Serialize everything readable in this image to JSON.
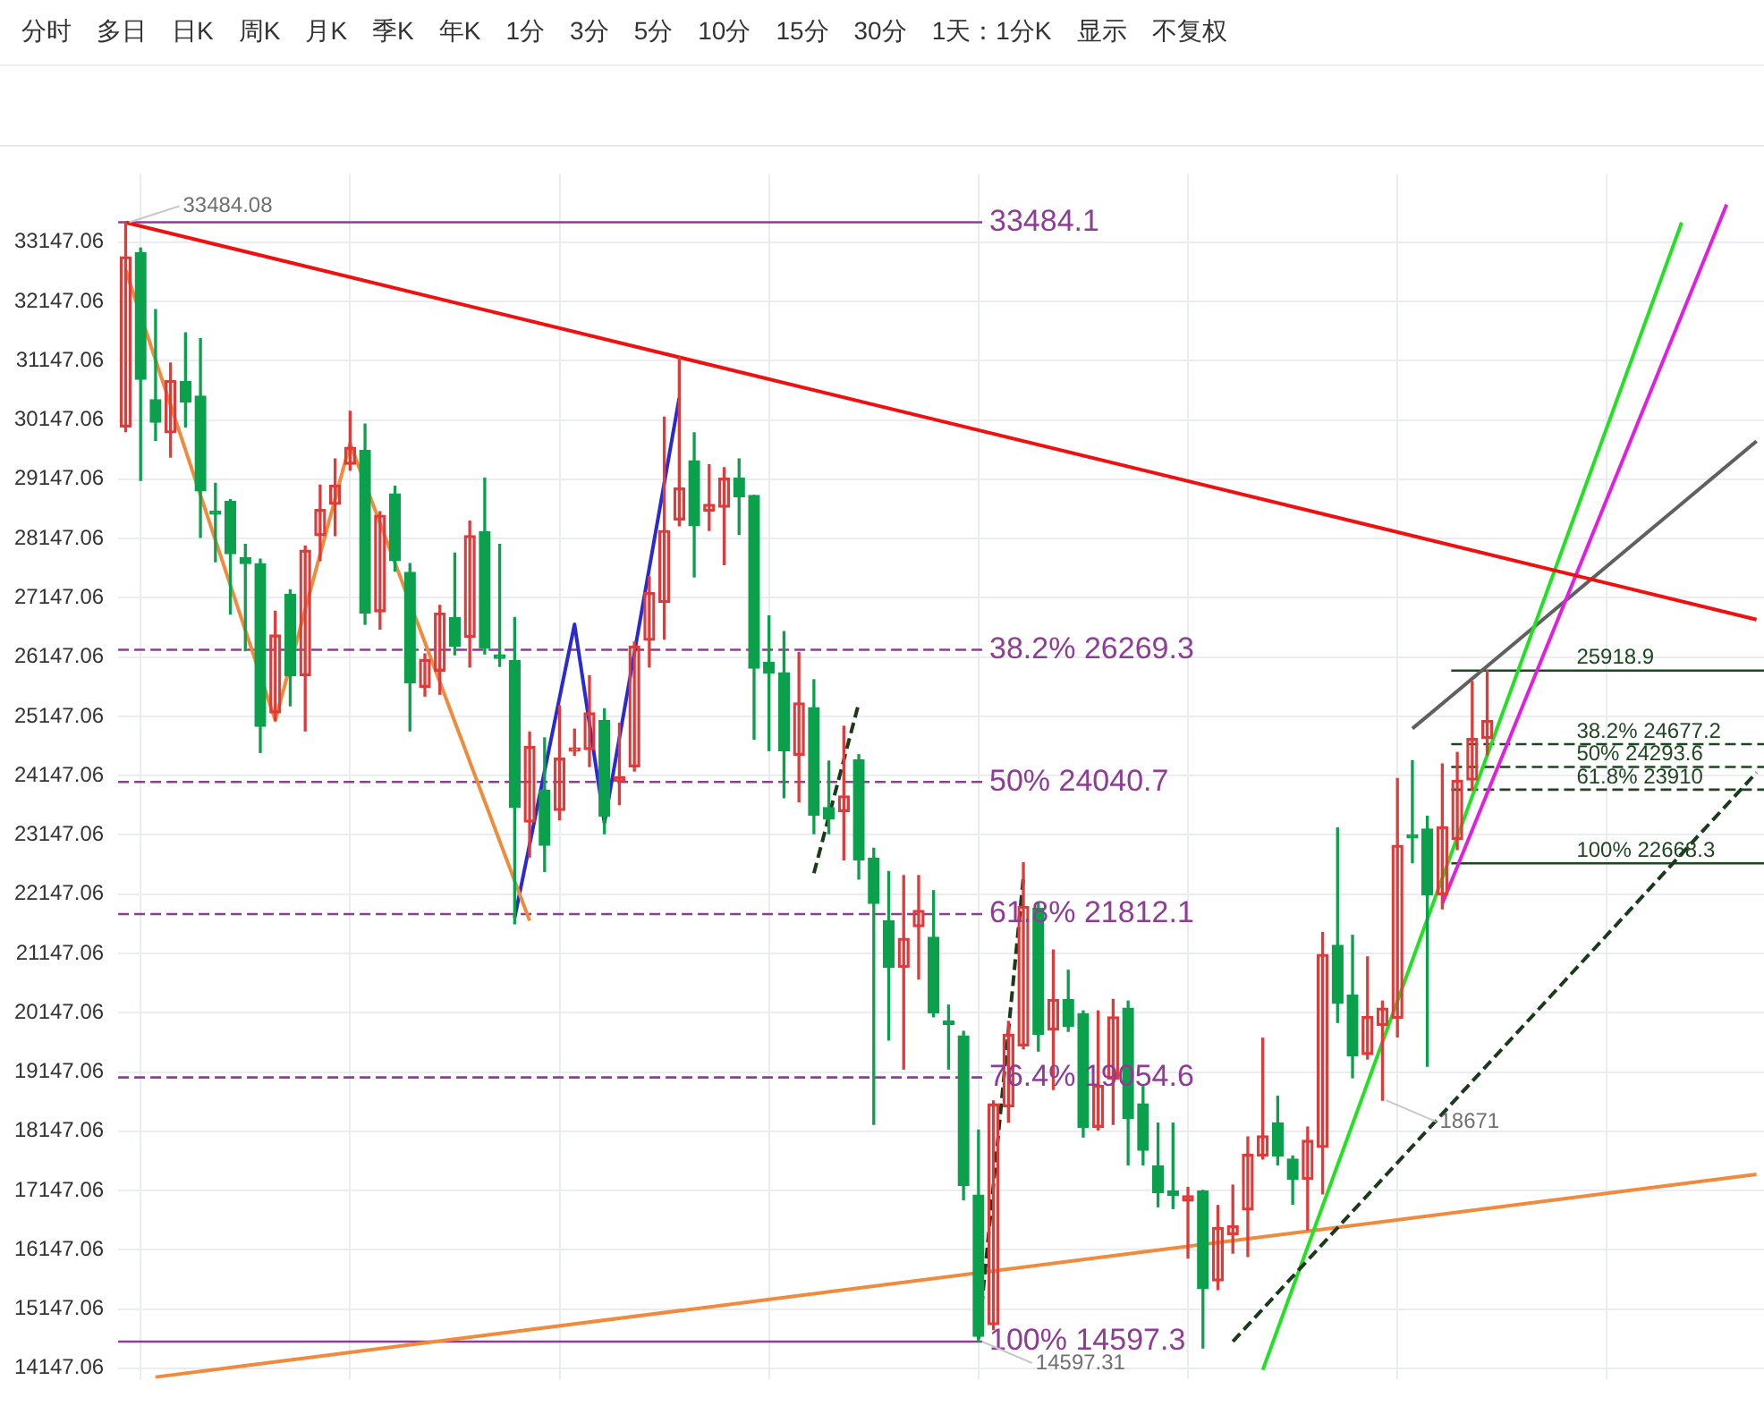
{
  "chart_data": {
    "type": "candlestick",
    "categories": [
      null,
      null,
      null,
      null,
      null,
      null,
      null,
      null,
      null,
      null,
      null,
      null,
      null,
      null,
      null,
      null,
      null,
      null,
      null,
      null,
      null,
      null,
      null,
      null,
      null,
      null,
      null,
      null,
      null,
      null,
      null,
      null,
      null,
      null,
      null,
      null,
      null,
      null,
      null,
      null,
      null,
      null,
      null,
      null,
      null,
      null,
      null,
      null,
      null,
      null,
      null,
      null,
      null,
      null,
      null,
      null,
      null,
      null,
      null,
      null,
      null,
      null,
      null,
      null,
      null,
      null,
      null,
      null,
      null,
      null,
      null,
      null,
      null,
      null,
      null,
      null,
      null,
      null,
      null,
      null,
      null,
      null,
      null,
      null,
      null,
      null,
      null,
      null,
      null,
      null,
      null,
      null,
      null,
      null,
      null,
      null,
      null,
      null,
      null,
      null,
      null,
      null,
      null,
      null,
      null,
      null,
      null,
      null,
      null,
      null
    ],
    "ohlc": [
      [
        30031,
        33484.08,
        29950,
        32902
      ],
      [
        32971,
        33049,
        29129,
        30835
      ],
      [
        30491,
        32010,
        29805,
        30109
      ],
      [
        29933,
        31109,
        29520,
        30815
      ],
      [
        30795,
        31618,
        30029,
        30451
      ],
      [
        30549,
        31520,
        28167,
        28951
      ],
      [
        28608,
        29079,
        27755,
        28559
      ],
      [
        28775,
        28804,
        26873,
        27892
      ],
      [
        27824,
        28049,
        26255,
        27726
      ],
      [
        27726,
        27800,
        24539,
        24980
      ],
      [
        25206,
        26921,
        25079,
        26519
      ],
      [
        27206,
        27284,
        25324,
        25833
      ],
      [
        25833,
        28020,
        24902,
        27951
      ],
      [
        28196,
        29049,
        27774,
        28637
      ],
      [
        28725,
        29490,
        28196,
        29049
      ],
      [
        29402,
        30294,
        29300,
        29686
      ],
      [
        29637,
        30078,
        26700,
        26892
      ],
      [
        26912,
        28600,
        26618,
        28539
      ],
      [
        28902,
        29029,
        27600,
        27774
      ],
      [
        27578,
        27725,
        24902,
        25715
      ],
      [
        25637,
        26200,
        25490,
        26108
      ],
      [
        25912,
        27020,
        25520,
        26892
      ],
      [
        26814,
        27902,
        26186,
        26333
      ],
      [
        26480,
        28441,
        25980,
        28196
      ],
      [
        28265,
        29167,
        26200,
        26304
      ],
      [
        26186,
        28049,
        25990,
        26127
      ],
      [
        26088,
        26814,
        21647,
        23608
      ],
      [
        23363,
        24882,
        22775,
        24637
      ],
      [
        23902,
        24784,
        22529,
        22971
      ],
      [
        23559,
        25324,
        23400,
        24441
      ],
      [
        24559,
        24931,
        24490,
        24617
      ],
      [
        24588,
        25833,
        24300,
        25206
      ],
      [
        25079,
        25275,
        23167,
        23461
      ],
      [
        24049,
        25030,
        23657,
        24127
      ],
      [
        24294,
        26400,
        24225,
        26333
      ],
      [
        26431,
        27500,
        25980,
        27235
      ],
      [
        27069,
        30196,
        26450,
        28284
      ],
      [
        28461,
        31206,
        28363,
        29000
      ],
      [
        29461,
        29931,
        27500,
        28363
      ],
      [
        28608,
        29392,
        28284,
        28725
      ],
      [
        28676,
        29343,
        27706,
        29167
      ],
      [
        29167,
        29490,
        28216,
        28853
      ],
      [
        28873,
        28873,
        24764,
        25961
      ],
      [
        26059,
        26843,
        24569,
        25882
      ],
      [
        25882,
        26578,
        23774,
        24569
      ],
      [
        24490,
        26225,
        23706,
        25373
      ],
      [
        25294,
        25765,
        23167,
        23480
      ],
      [
        23608,
        24392,
        23167,
        23412
      ],
      [
        23539,
        24980,
        22725,
        23804
      ],
      [
        24412,
        24500,
        22402,
        22725
      ],
      [
        22755,
        22922,
        18265,
        21990
      ],
      [
        21696,
        22529,
        19686,
        20912
      ],
      [
        20912,
        22461,
        19196,
        21402
      ],
      [
        21598,
        22461,
        20716,
        21872
      ],
      [
        21421,
        22206,
        20078,
        20147
      ],
      [
        20010,
        20275,
        19196,
        19951
      ],
      [
        19755,
        19833,
        16990,
        17235
      ],
      [
        17069,
        18167,
        14597.31,
        14686
      ],
      [
        14882,
        18657,
        14800,
        18608
      ],
      [
        18559,
        20000,
        18300,
        19784
      ],
      [
        19588,
        22676,
        19539,
        21941
      ],
      [
        21912,
        22000,
        19500,
        19784
      ],
      [
        19853,
        21206,
        18853,
        20373
      ],
      [
        20373,
        20863,
        19833,
        19912
      ],
      [
        20128,
        20177,
        18049,
        18216
      ],
      [
        18216,
        20177,
        18167,
        18921
      ],
      [
        19029,
        20373,
        18265,
        20078
      ],
      [
        20226,
        20343,
        17580,
        18363
      ],
      [
        18608,
        18902,
        17580,
        17824
      ],
      [
        17559,
        18284,
        16873,
        17108
      ],
      [
        17137,
        18284,
        16843,
        17069
      ],
      [
        16971,
        17200,
        16010,
        17059
      ],
      [
        17137,
        17150,
        14490,
        15490
      ],
      [
        15621,
        16895,
        15474,
        16523
      ],
      [
        16402,
        17238,
        16091,
        16552
      ],
      [
        16817,
        18051,
        16033,
        17757
      ],
      [
        17728,
        19717,
        17679,
        18071
      ],
      [
        18287,
        18737,
        17581,
        17728
      ],
      [
        17679,
        17728,
        16915,
        17336
      ],
      [
        17336,
        18218,
        16483,
        17993
      ],
      [
        17875,
        21501,
        17091,
        21129
      ],
      [
        21286,
        23265,
        19982,
        20306
      ],
      [
        20443,
        21452,
        19049,
        19422
      ],
      [
        19442,
        21089,
        19365,
        20080
      ],
      [
        19933,
        20343,
        18671,
        20226
      ],
      [
        20051,
        24098,
        19737,
        22971
      ],
      [
        23147,
        24400,
        22677,
        23098
      ],
      [
        23245,
        23461,
        19245,
        22137
      ],
      [
        22137,
        24343,
        21900,
        23284
      ],
      [
        23069,
        24539,
        22900,
        24069
      ],
      [
        24072,
        25735,
        23900,
        24773
      ],
      [
        24773,
        25918.9,
        24500,
        25077
      ],
      null,
      null,
      null,
      null,
      null,
      null,
      null,
      null,
      null,
      null,
      null,
      null,
      null,
      null,
      null,
      null,
      null,
      null
    ],
    "series": [
      {
        "type": "line",
        "color": "#f01010",
        "values": [
          33480,
          null,
          null,
          null,
          null,
          null,
          null,
          null,
          null,
          null,
          null,
          null,
          null,
          null,
          null,
          null,
          null,
          null,
          null,
          null,
          null,
          null,
          null,
          null,
          null,
          null,
          null,
          null,
          null,
          null,
          null,
          null,
          null,
          null,
          null,
          null,
          null,
          null,
          null,
          null,
          null,
          null,
          null,
          null,
          null,
          null,
          null,
          null,
          null,
          null,
          null,
          null,
          null,
          null,
          null,
          null,
          null,
          null,
          null,
          null,
          null,
          null,
          null,
          null,
          null,
          null,
          null,
          null,
          null,
          null,
          null,
          null,
          null,
          null,
          null,
          null,
          null,
          null,
          null,
          null,
          null,
          null,
          null,
          null,
          null,
          null,
          null,
          null,
          null,
          null,
          null,
          null,
          null,
          null,
          null,
          null,
          null,
          null,
          null,
          null,
          null,
          null,
          null,
          null,
          null,
          null,
          null,
          null,
          null,
          26780
        ]
      },
      {
        "type": "line",
        "color": "#f08a3c",
        "values": [
          32680,
          null,
          null,
          null,
          null,
          null,
          null,
          null,
          null,
          null,
          25080,
          null,
          null,
          null,
          null,
          29750,
          null,
          null,
          null,
          null,
          null,
          null,
          null,
          null,
          null,
          null,
          null,
          21700,
          null,
          null,
          null,
          null,
          null,
          null,
          null,
          null,
          null,
          null,
          null,
          null,
          null,
          null,
          null,
          null,
          null,
          null,
          null,
          null,
          null,
          null,
          null,
          null,
          null,
          null,
          null,
          null,
          null,
          null,
          null,
          null,
          null,
          null,
          null,
          null,
          null,
          null,
          null,
          null,
          null,
          null,
          null,
          null,
          null,
          null,
          null,
          null,
          null,
          null,
          null,
          null,
          null,
          null,
          null,
          null,
          null,
          null,
          null,
          null,
          null,
          null,
          null,
          null,
          null,
          null,
          null,
          null,
          null,
          null,
          null,
          null,
          null,
          null,
          null,
          null,
          null,
          null,
          null,
          null,
          null,
          null
        ]
      },
      {
        "type": "line",
        "color": "#2a2ad0",
        "values": [
          null,
          null,
          null,
          null,
          null,
          null,
          null,
          null,
          null,
          null,
          null,
          null,
          null,
          null,
          null,
          null,
          null,
          null,
          null,
          null,
          null,
          null,
          null,
          null,
          null,
          null,
          21750,
          null,
          null,
          null,
          26700,
          null,
          23350,
          null,
          null,
          null,
          null,
          30520,
          null,
          null,
          null,
          null,
          null,
          null,
          null,
          null,
          null,
          null,
          null,
          null,
          null,
          null,
          null,
          null,
          null,
          null,
          null,
          null,
          null,
          null,
          null,
          null,
          null,
          null,
          null,
          null,
          null,
          null,
          null,
          null,
          null,
          null,
          null,
          null,
          null,
          null,
          null,
          null,
          null,
          null,
          null,
          null,
          null,
          null,
          null,
          null,
          null,
          null,
          null,
          null,
          null,
          null,
          null,
          null,
          null,
          null,
          null,
          null,
          null,
          null,
          null,
          null,
          null,
          null,
          null,
          null,
          null,
          null,
          null,
          null
        ]
      },
      {
        "type": "line",
        "color": "#1a3a1a",
        "line_style": "dashed",
        "values": [
          null,
          null,
          null,
          null,
          null,
          null,
          null,
          null,
          null,
          null,
          null,
          null,
          null,
          null,
          null,
          null,
          null,
          null,
          null,
          null,
          null,
          null,
          null,
          null,
          null,
          null,
          null,
          null,
          null,
          null,
          null,
          null,
          null,
          null,
          null,
          null,
          null,
          null,
          null,
          null,
          null,
          null,
          null,
          null,
          null,
          null,
          22500,
          null,
          null,
          25370,
          null,
          null,
          null,
          null,
          null,
          null,
          null,
          null,
          null,
          null,
          null,
          null,
          null,
          null,
          null,
          null,
          null,
          null,
          null,
          null,
          null,
          null,
          null,
          null,
          null,
          null,
          null,
          null,
          null,
          null,
          null,
          null,
          null,
          null,
          null,
          null,
          null,
          null,
          null,
          null,
          null,
          null,
          null,
          null,
          null,
          null,
          null,
          null,
          null,
          null,
          null,
          null,
          null,
          null,
          null,
          null,
          null,
          null,
          null,
          null
        ]
      },
      {
        "type": "line",
        "color": "#1a3a1a",
        "line_style": "dashed",
        "values": [
          null,
          null,
          null,
          null,
          null,
          null,
          null,
          null,
          null,
          null,
          null,
          null,
          null,
          null,
          null,
          null,
          null,
          null,
          null,
          null,
          null,
          null,
          null,
          null,
          null,
          null,
          null,
          null,
          null,
          null,
          null,
          null,
          null,
          null,
          null,
          null,
          null,
          null,
          null,
          null,
          null,
          null,
          null,
          null,
          null,
          null,
          null,
          null,
          null,
          null,
          null,
          null,
          null,
          null,
          null,
          null,
          null,
          14650,
          null,
          null,
          22430,
          null,
          null,
          null,
          null,
          null,
          null,
          null,
          null,
          null,
          null,
          null,
          null,
          null,
          null,
          null,
          null,
          null,
          null,
          null,
          null,
          null,
          null,
          null,
          null,
          null,
          null,
          null,
          null,
          null,
          null,
          null,
          null,
          null,
          null,
          null,
          null,
          null,
          null,
          null,
          null,
          null,
          null,
          null,
          null,
          null,
          null,
          null,
          null,
          null
        ]
      },
      {
        "type": "line",
        "color": "#1a3a1a",
        "line_style": "dashed",
        "values": [
          null,
          null,
          null,
          null,
          null,
          null,
          null,
          null,
          null,
          null,
          null,
          null,
          null,
          null,
          null,
          null,
          null,
          null,
          null,
          null,
          null,
          null,
          null,
          null,
          null,
          null,
          null,
          null,
          null,
          null,
          null,
          null,
          null,
          null,
          null,
          null,
          null,
          null,
          null,
          null,
          null,
          null,
          null,
          null,
          null,
          null,
          null,
          null,
          null,
          null,
          null,
          null,
          null,
          null,
          null,
          null,
          null,
          null,
          null,
          null,
          null,
          null,
          null,
          null,
          null,
          null,
          null,
          null,
          null,
          null,
          null,
          null,
          null,
          null,
          14600,
          null,
          null,
          null,
          null,
          null,
          null,
          null,
          null,
          null,
          null,
          null,
          null,
          null,
          null,
          null,
          null,
          null,
          null,
          null,
          null,
          null,
          null,
          null,
          null,
          null,
          null,
          null,
          null,
          null,
          null,
          null,
          null,
          null,
          null,
          24200
        ]
      },
      {
        "type": "line",
        "color": "#22e022",
        "values": [
          null,
          null,
          null,
          null,
          null,
          null,
          null,
          null,
          null,
          null,
          null,
          null,
          null,
          null,
          null,
          null,
          null,
          null,
          null,
          null,
          null,
          null,
          null,
          null,
          null,
          null,
          null,
          null,
          null,
          null,
          null,
          null,
          null,
          null,
          null,
          null,
          null,
          null,
          null,
          null,
          null,
          null,
          null,
          null,
          null,
          null,
          null,
          null,
          null,
          null,
          null,
          null,
          null,
          null,
          null,
          null,
          null,
          null,
          null,
          null,
          null,
          null,
          null,
          null,
          null,
          null,
          null,
          null,
          null,
          null,
          null,
          null,
          null,
          null,
          null,
          null,
          14120,
          null,
          null,
          null,
          null,
          null,
          null,
          null,
          null,
          null,
          null,
          null,
          null,
          null,
          null,
          null,
          null,
          null,
          null,
          null,
          null,
          null,
          null,
          null,
          null,
          null,
          null,
          null,
          33480,
          null,
          null,
          null,
          null,
          null
        ]
      },
      {
        "type": "line",
        "color": "#e020e0",
        "values": [
          null,
          null,
          null,
          null,
          null,
          null,
          null,
          null,
          null,
          null,
          null,
          null,
          null,
          null,
          null,
          null,
          null,
          null,
          null,
          null,
          null,
          null,
          null,
          null,
          null,
          null,
          null,
          null,
          null,
          null,
          null,
          null,
          null,
          null,
          null,
          null,
          null,
          null,
          null,
          null,
          null,
          null,
          null,
          null,
          null,
          null,
          null,
          null,
          null,
          null,
          null,
          null,
          null,
          null,
          null,
          null,
          null,
          null,
          null,
          null,
          null,
          null,
          null,
          null,
          null,
          null,
          null,
          null,
          null,
          null,
          null,
          null,
          null,
          null,
          null,
          null,
          null,
          null,
          null,
          null,
          null,
          null,
          null,
          null,
          null,
          null,
          null,
          null,
          21990,
          null,
          null,
          null,
          null,
          null,
          null,
          null,
          null,
          null,
          null,
          null,
          null,
          null,
          null,
          null,
          null,
          null,
          null,
          33780,
          null,
          null
        ]
      },
      {
        "type": "line",
        "color": "#606060",
        "values": [
          null,
          null,
          null,
          null,
          null,
          null,
          null,
          null,
          null,
          null,
          null,
          null,
          null,
          null,
          null,
          null,
          null,
          null,
          null,
          null,
          null,
          null,
          null,
          null,
          null,
          null,
          null,
          null,
          null,
          null,
          null,
          null,
          null,
          null,
          null,
          null,
          null,
          null,
          null,
          null,
          null,
          null,
          null,
          null,
          null,
          null,
          null,
          null,
          null,
          null,
          null,
          null,
          null,
          null,
          null,
          null,
          null,
          null,
          null,
          null,
          null,
          null,
          null,
          null,
          null,
          null,
          null,
          null,
          null,
          null,
          null,
          null,
          null,
          null,
          null,
          null,
          null,
          null,
          null,
          null,
          null,
          null,
          null,
          null,
          null,
          null,
          24940,
          null,
          null,
          null,
          null,
          null,
          null,
          null,
          null,
          null,
          null,
          null,
          null,
          null,
          null,
          null,
          null,
          null,
          null,
          null,
          null,
          null,
          null,
          29790
        ]
      },
      {
        "type": "line",
        "color": "#f08a3c",
        "values": [
          null,
          null,
          14000,
          null,
          null,
          null,
          null,
          null,
          null,
          null,
          null,
          null,
          null,
          null,
          null,
          null,
          null,
          null,
          null,
          null,
          null,
          null,
          null,
          null,
          null,
          null,
          null,
          null,
          null,
          null,
          null,
          null,
          null,
          null,
          null,
          null,
          null,
          null,
          null,
          null,
          null,
          null,
          null,
          null,
          null,
          null,
          null,
          null,
          null,
          null,
          null,
          null,
          null,
          null,
          null,
          null,
          null,
          null,
          null,
          null,
          null,
          null,
          null,
          null,
          null,
          null,
          null,
          null,
          null,
          null,
          null,
          null,
          null,
          null,
          null,
          null,
          null,
          null,
          null,
          null,
          null,
          null,
          null,
          null,
          null,
          null,
          null,
          null,
          null,
          null,
          null,
          null,
          null,
          null,
          null,
          null,
          null,
          null,
          null,
          null,
          null,
          null,
          null,
          null,
          null,
          null,
          null,
          null,
          null,
          17420
        ]
      }
    ],
    "ylim": [
      13970,
      34300
    ],
    "yticks": [
      14147.06,
      15147.06,
      16147.06,
      17147.06,
      18147.06,
      19147.06,
      20147.06,
      21147.06,
      22147.06,
      23147.06,
      24147.06,
      25147.06,
      26147.06,
      27147.06,
      28147.06,
      29147.06,
      30147.06,
      31147.06,
      32147.06,
      33147.06
    ],
    "grid": true,
    "tick_labels": "y",
    "ref_lines": [
      {
        "axis": "y",
        "value": 33484.1,
        "label": "33484.1",
        "color": "#8e3c96",
        "line_style": "solid"
      },
      {
        "axis": "y",
        "value": 26269.3,
        "label": "38.2% 26269.3",
        "color": "#8e3c96",
        "line_style": "dashed"
      },
      {
        "axis": "y",
        "value": 24040.7,
        "label": "50% 24040.7",
        "color": "#8e3c96",
        "line_style": "dashed"
      },
      {
        "axis": "y",
        "value": 21812.1,
        "label": "61.8% 21812.1",
        "color": "#8e3c96",
        "line_style": "dashed"
      },
      {
        "axis": "y",
        "value": 19054.6,
        "label": "76.4% 19054.6",
        "color": "#8e3c96",
        "line_style": "dashed"
      },
      {
        "axis": "y",
        "value": 14597.3,
        "label": "100% 14597.3",
        "color": "#8e3c96",
        "line_style": "solid"
      },
      {
        "axis": "y",
        "value": 25918.9,
        "label": "25918.9",
        "color": "#1e4620",
        "line_style": "solid"
      },
      {
        "axis": "y",
        "value": 24677.2,
        "label": "38.2% 24677.2",
        "color": "#1e4620",
        "line_style": "dashed"
      },
      {
        "axis": "y",
        "value": 24293.6,
        "label": "50% 24293.6",
        "color": "#1e4620",
        "line_style": "dashed"
      },
      {
        "axis": "y",
        "value": 23910,
        "label": "61.8% 23910",
        "color": "#1e4620",
        "line_style": "dashed"
      },
      {
        "axis": "y",
        "value": 22668.3,
        "label": "100% 22668.3",
        "color": "#1e4620",
        "line_style": "solid"
      }
    ],
    "value_labels": [
      "33484.08",
      null,
      null,
      null,
      null,
      null,
      null,
      null,
      null,
      null,
      null,
      null,
      null,
      null,
      null,
      null,
      null,
      null,
      null,
      null,
      null,
      null,
      null,
      null,
      null,
      null,
      null,
      null,
      null,
      null,
      null,
      null,
      null,
      null,
      null,
      null,
      null,
      null,
      null,
      null,
      null,
      null,
      null,
      null,
      null,
      null,
      null,
      null,
      null,
      null,
      null,
      null,
      null,
      null,
      null,
      null,
      null,
      "14597.31",
      null,
      null,
      null,
      null,
      null,
      null,
      null,
      null,
      null,
      null,
      null,
      null,
      null,
      null,
      null,
      null,
      null,
      null,
      null,
      null,
      null,
      null,
      null,
      null,
      null,
      null,
      "18671",
      null,
      null,
      null,
      null,
      null,
      null,
      null,
      null,
      null,
      null,
      null,
      null,
      null,
      null,
      null,
      null,
      null,
      null,
      null,
      null,
      null,
      null,
      null,
      null,
      null
    ],
    "annotations": [
      "分时",
      "多日",
      "日K",
      "周K",
      "月K",
      "季K",
      "年K",
      "1分",
      "3分",
      "5分",
      "10分",
      "15分",
      "30分",
      "1天：1分K",
      "显示",
      "不复权"
    ]
  }
}
